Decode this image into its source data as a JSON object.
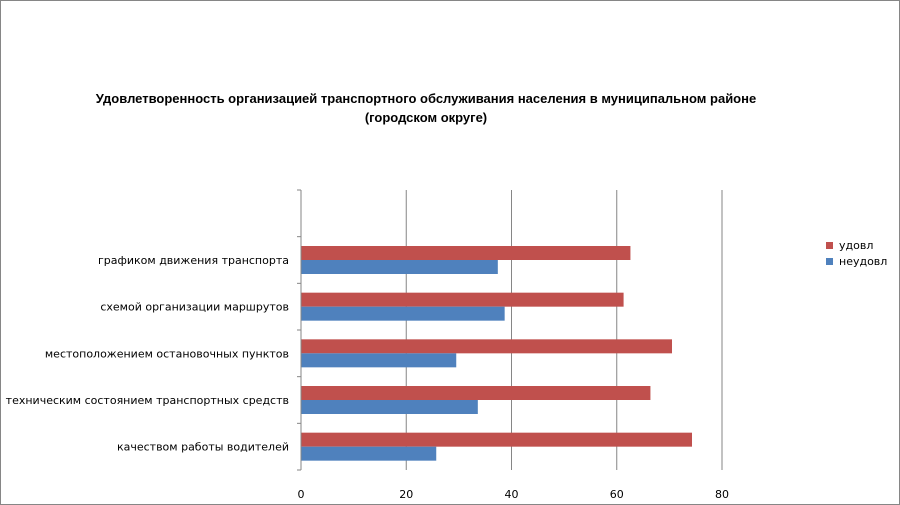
{
  "chart_data": {
    "type": "bar",
    "orientation": "horizontal",
    "title_lines": [
      "Удовлетворенность организацией транспортного обслуживания населения в муниципальном районе",
      "(городском округе)"
    ],
    "categories": [
      "качеством работы водителей",
      "техническим состоянием транспортных средств",
      "местоположением остановочных пунктов",
      "схемой организации маршрутов",
      "графиком движения транспорта"
    ],
    "series": [
      {
        "name": "удовл",
        "color": "#C0504D",
        "values": [
          74.3,
          66.4,
          70.5,
          61.3,
          62.6
        ]
      },
      {
        "name": "неудовл",
        "color": "#4F81BD",
        "values": [
          25.7,
          33.6,
          29.5,
          38.7,
          37.4
        ]
      }
    ],
    "xlim": [
      0,
      80
    ],
    "xticks": [
      0,
      20,
      40,
      60,
      80
    ],
    "grid": true,
    "legend_position": "right"
  }
}
